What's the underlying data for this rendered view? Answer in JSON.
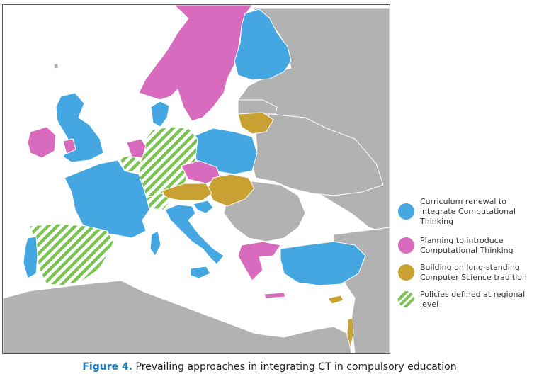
{
  "colors": {
    "sea": "#ffffff",
    "land_gray": "#b2b2b2",
    "border_white": "#ffffff",
    "blue": "#45a7e1",
    "pink": "#d86bbd",
    "gold": "#c9a032",
    "green_stripe": "#7ac451"
  },
  "legend": {
    "items": [
      {
        "label": "Curriculum renewal to integrate Computational Thinking",
        "swatch": "blue"
      },
      {
        "label": "Planning to introduce Computational Thinking",
        "swatch": "pink"
      },
      {
        "label": "Building on long-standing Computer Science tradition",
        "swatch": "gold"
      },
      {
        "label": "Policies defined at regional level",
        "swatch": "green-stripes"
      }
    ]
  },
  "caption": {
    "figure_label": "Figure 4.",
    "text": "Prevailing approaches in integrating CT in compulsory education"
  }
}
